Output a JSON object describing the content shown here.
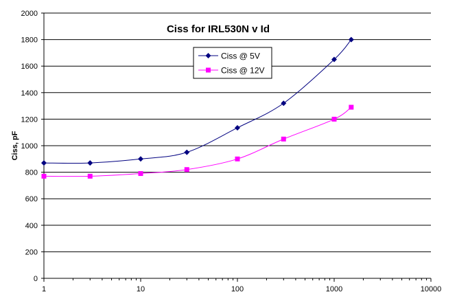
{
  "chart_data": {
    "type": "line",
    "title": "Ciss for IRL530N v Id",
    "xlabel": "",
    "ylabel": "Ciss, pF",
    "xscale": "log",
    "xlim": [
      1,
      10000
    ],
    "ylim": [
      0,
      2000
    ],
    "xticks": [
      1,
      10,
      100,
      1000,
      10000
    ],
    "xtick_labels": [
      "1",
      "10",
      "100",
      "1000",
      "10000"
    ],
    "yticks": [
      0,
      200,
      400,
      600,
      800,
      1000,
      1200,
      1400,
      1600,
      1800,
      2000
    ],
    "ytick_labels": [
      "0",
      "200",
      "400",
      "600",
      "800",
      "1000",
      "1200",
      "1400",
      "1600",
      "1800",
      "2000"
    ],
    "grid": "horizontal",
    "legend_position": "top-center",
    "series": [
      {
        "name": "Ciss @ 5V",
        "color": "#000080",
        "marker": "diamond",
        "x": [
          1,
          3,
          10,
          30,
          100,
          300,
          1000,
          1500
        ],
        "y": [
          870,
          870,
          900,
          950,
          1135,
          1320,
          1650,
          1800
        ]
      },
      {
        "name": "Ciss @ 12V",
        "color": "#ff00ff",
        "marker": "square",
        "x": [
          1,
          3,
          10,
          30,
          100,
          300,
          1000,
          1500
        ],
        "y": [
          770,
          770,
          790,
          820,
          900,
          1050,
          1200,
          1290
        ]
      }
    ]
  }
}
